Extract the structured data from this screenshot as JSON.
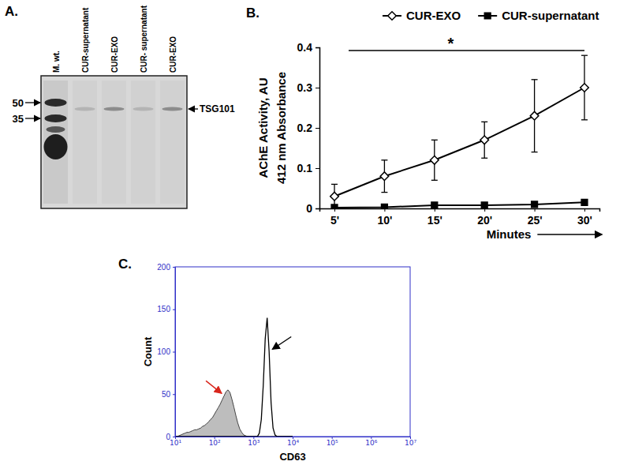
{
  "chart_data": [
    {
      "type": "blot",
      "title": "A.",
      "categories": [
        "M. wt.",
        "CUR-supernatant",
        "CUR-EXO",
        "CUR- supernatant",
        "CUR-EXO"
      ],
      "yticks": [
        50,
        35
      ],
      "annotations": [
        {
          "text": "TSG101"
        }
      ]
    },
    {
      "type": "line",
      "title": "B.",
      "categories": [
        "5'",
        "10'",
        "15'",
        "20'",
        "25'",
        "30'"
      ],
      "x_label": "Minutes",
      "y_label": [
        "AChE Activity, AU",
        "412 nm Absorbance"
      ],
      "ylim": [
        0,
        0.4
      ],
      "yticks": [
        0,
        0.1,
        0.2,
        0.3,
        0.4
      ],
      "legend": "top",
      "series": [
        {
          "name": "CUR-EXO",
          "color": "#000000",
          "marker": "diamond",
          "values": [
            0.03,
            0.08,
            0.12,
            0.17,
            0.23,
            0.3
          ],
          "errors": [
            0.03,
            0.04,
            0.05,
            0.045,
            0.09,
            0.08
          ]
        },
        {
          "name": "CUR-supernatant",
          "color": "#000000",
          "marker": "square",
          "values": [
            0.002,
            0.003,
            0.008,
            0.008,
            0.01,
            0.015
          ]
        }
      ],
      "annotations": [
        {
          "text": "*"
        }
      ]
    },
    {
      "type": "area",
      "title": "C.",
      "x_label": "CD63",
      "y_label": "Count",
      "log": "x",
      "xlim": [
        10,
        10000000
      ],
      "xticks": [
        {
          "value": 10,
          "label": "10¹"
        },
        {
          "value": 100,
          "label": "10²"
        },
        {
          "value": 1000,
          "label": "10³"
        },
        {
          "value": 10000,
          "label": "10⁴"
        },
        {
          "value": 100000,
          "label": "10⁵"
        },
        {
          "value": 1000000,
          "label": "10⁶"
        },
        {
          "value": 10000000,
          "label": "10⁷"
        }
      ],
      "ylim": [
        0,
        200
      ],
      "yticks": [
        0,
        50,
        100,
        150,
        200
      ],
      "x": [
        10,
        11.2,
        12.6,
        14.1,
        15.8,
        17.8,
        20,
        22.4,
        25.1,
        28.2,
        31.6,
        35.5,
        39.8,
        44.7,
        50.1,
        56.2,
        63.1,
        70.8,
        79.4,
        89.1,
        100,
        112,
        126,
        141,
        158,
        178,
        200,
        224,
        251,
        282,
        316,
        355,
        398,
        447,
        501,
        562,
        631,
        708,
        794,
        891,
        1000,
        1122,
        1259,
        1413,
        1585,
        1778,
        1995,
        2239,
        2512,
        2818,
        3162,
        3548,
        3981,
        4467,
        5012,
        5623,
        6310,
        7079,
        7943,
        8913,
        10000
      ],
      "series": [
        {
          "type": "area",
          "color": "#bdbdbd",
          "values": [
            0,
            0,
            1,
            2,
            3,
            4,
            5,
            5,
            6,
            7,
            8,
            8,
            9,
            10,
            12,
            13,
            15,
            17,
            20,
            22,
            26,
            30,
            34,
            38,
            43,
            48,
            53,
            55,
            52,
            44,
            35,
            25,
            16,
            9,
            5,
            2,
            1,
            0,
            0,
            0,
            0,
            0,
            0,
            0,
            0,
            0,
            0,
            0,
            0,
            0,
            0,
            0,
            0,
            0,
            0,
            0,
            0,
            0,
            0,
            0,
            0
          ]
        },
        {
          "type": "line",
          "color": "#000000",
          "values": [
            0,
            0,
            0,
            0,
            0,
            0,
            0,
            0,
            0,
            0,
            0,
            0,
            0,
            0,
            0,
            0,
            0,
            0,
            0,
            0,
            0,
            0,
            0,
            0,
            0,
            0,
            0,
            0,
            0,
            0,
            0,
            0,
            0,
            0,
            0,
            0,
            0,
            0,
            0,
            0,
            0,
            0,
            0,
            4,
            20,
            60,
            115,
            140,
            100,
            40,
            10,
            2,
            0,
            0,
            0,
            0,
            0,
            0,
            0,
            0,
            0
          ]
        }
      ]
    }
  ]
}
